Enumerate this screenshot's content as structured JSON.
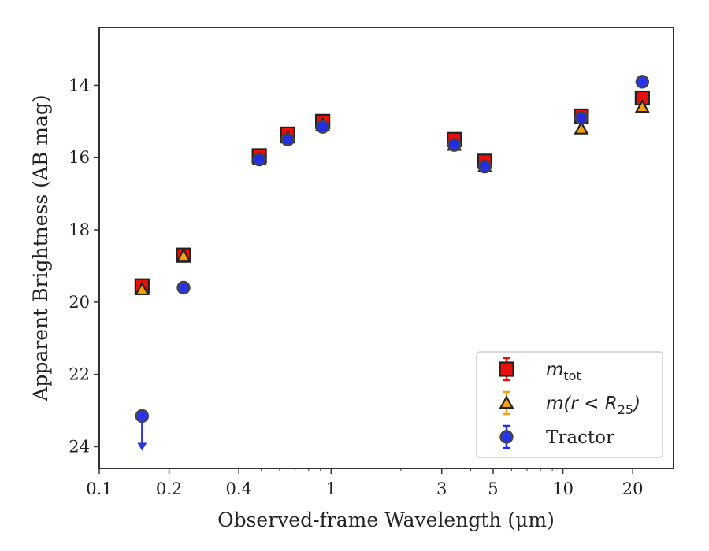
{
  "chart_data": {
    "type": "scatter",
    "xlabel": "Observed-frame Wavelength (μm)",
    "ylabel": "Apparent Brightness (AB mag)",
    "xscale": "log",
    "xlim": [
      0.1,
      30
    ],
    "ylim": [
      24.6,
      12.4
    ],
    "y_inverted": true,
    "x_ticks": [
      0.1,
      0.2,
      0.4,
      1,
      3,
      5,
      10,
      20
    ],
    "x_tick_labels": [
      "0.1",
      "0.2",
      "0.4",
      "1",
      "3",
      "5",
      "10",
      "20"
    ],
    "y_ticks": [
      14,
      16,
      18,
      20,
      22,
      24
    ],
    "y_tick_labels": [
      "14",
      "16",
      "18",
      "20",
      "22",
      "24"
    ],
    "grid": false,
    "legend_position": "lower-right",
    "series": [
      {
        "name": "m_tot",
        "marker": "square",
        "color": "#e8100c",
        "edge": "#222222",
        "x": [
          0.153,
          0.231,
          0.49,
          0.65,
          0.92,
          3.4,
          4.6,
          12.0,
          22.0
        ],
        "y": [
          19.55,
          18.7,
          15.95,
          15.35,
          15.0,
          15.5,
          16.1,
          14.85,
          14.35
        ]
      },
      {
        "name": "m(r < R25)",
        "marker": "triangle",
        "color": "#f5a10e",
        "edge": "#222222",
        "x": [
          0.153,
          0.231,
          0.49,
          0.65,
          0.92,
          3.4,
          4.6,
          12.0,
          22.0
        ],
        "y": [
          19.65,
          18.72,
          16.05,
          15.45,
          15.1,
          15.65,
          16.25,
          15.2,
          14.6
        ]
      },
      {
        "name": "Tractor",
        "marker": "circle",
        "color": "#1f2bea",
        "edge": "#444444",
        "x": [
          0.153,
          0.231,
          0.49,
          0.65,
          0.92,
          3.4,
          4.6,
          12.0,
          22.0
        ],
        "y": [
          23.15,
          19.6,
          16.05,
          15.5,
          15.15,
          15.65,
          16.25,
          14.9,
          13.9
        ],
        "upper_limit_index": 0
      }
    ],
    "legend": [
      {
        "label_base": "m",
        "label_sub": "tot",
        "marker": "square"
      },
      {
        "label_base": "m(r < R",
        "label_sub": "25",
        "label_end": ")",
        "marker": "triangle"
      },
      {
        "label_base": "Tractor",
        "marker": "circle"
      }
    ]
  }
}
